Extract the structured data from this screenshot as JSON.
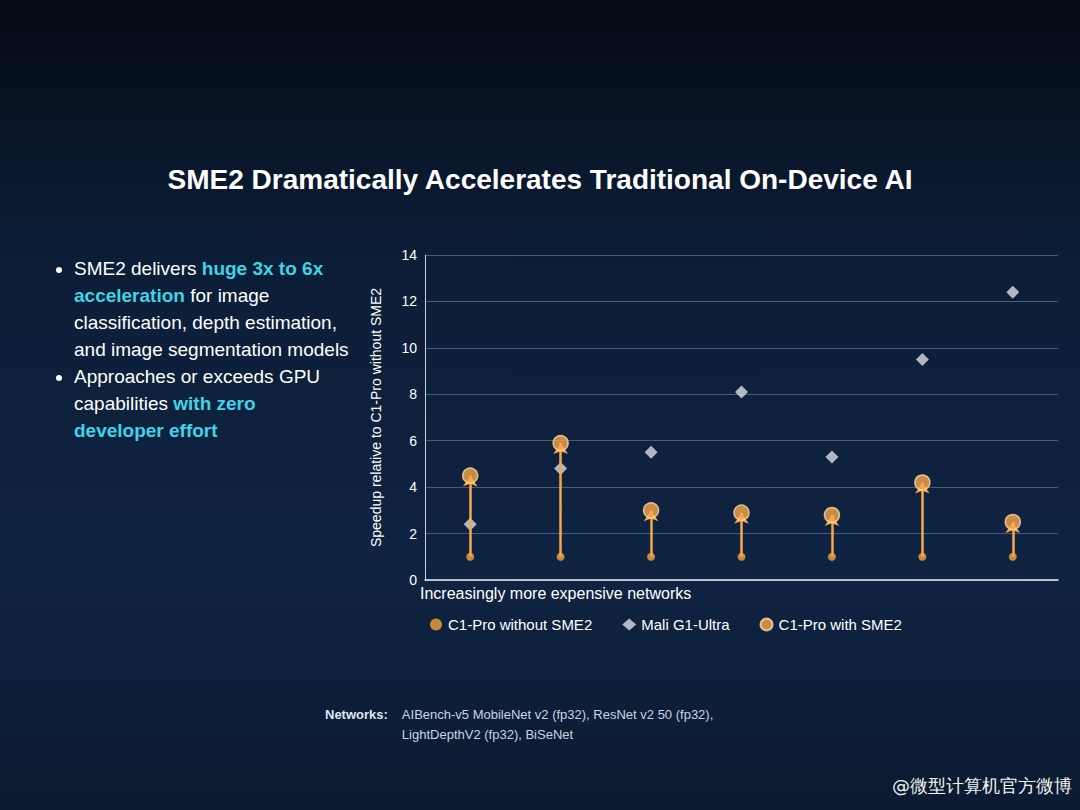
{
  "chart_data": {
    "type": "scatter",
    "title": "SME2 Dramatically Accelerates Traditional On-Device AI",
    "y_label": "Speedup relative to C1-Pro without SME2",
    "x_label": "Increasingly more expensive networks",
    "categories": [
      null,
      null,
      null,
      null,
      null,
      null,
      null
    ],
    "series": [
      {
        "name": "C1-Pro without SME2",
        "color": "#f5a53c",
        "marker": "circle",
        "values": [
          1,
          1,
          1,
          1,
          1,
          1,
          1
        ]
      },
      {
        "name": "Mali G1-Ultra",
        "color": "#d9dde6",
        "marker": "diamond",
        "values": [
          2.4,
          4.8,
          5.5,
          8.1,
          5.3,
          9.5,
          12.4
        ]
      },
      {
        "name": "C1-Pro with SME2",
        "color": "#f7a84a",
        "marker": "circle",
        "values": [
          4.5,
          5.9,
          3.0,
          2.9,
          2.8,
          4.2,
          2.5
        ]
      }
    ],
    "ylim": [
      0,
      14
    ],
    "yticks": [
      0,
      2,
      4,
      6,
      8,
      10,
      12,
      14
    ],
    "grid": true,
    "legend": "bottom",
    "tick_labels": "y",
    "bullets": [
      {
        "segments": [
          {
            "text": "SME2 delivers ",
            "color": "#ffffff"
          },
          {
            "text": "huge 3x to 6x acceleration",
            "color": "#3fd4e6"
          },
          {
            "text": " for image classification, depth estimation, and image segmentation models",
            "color": "#ffffff"
          }
        ]
      },
      {
        "segments": [
          {
            "text": "Approaches or exceeds GPU capabilities ",
            "color": "#ffffff"
          },
          {
            "text": "with zero developer effort",
            "color": "#3fd4e6"
          }
        ]
      }
    ],
    "networks_label": "Networks:",
    "networks": [
      "AIBench-v5 MobileNet v2 (fp32), ResNet v2 50 (fp32),",
      "LightDepthV2 (fp32), BiSeNet"
    ],
    "watermark": "@微型计算机官方微博"
  }
}
